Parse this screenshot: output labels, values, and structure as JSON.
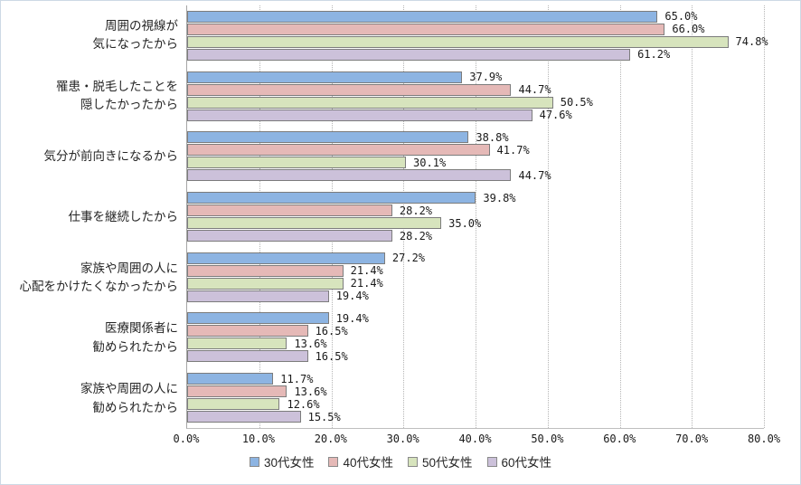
{
  "chart_data": {
    "type": "bar",
    "orientation": "horizontal",
    "title": "",
    "categories": [
      [
        "周囲の視線が",
        "気になったから"
      ],
      [
        "罹患・脱毛したことを",
        "隠したかったから"
      ],
      [
        "気分が前向きになるから"
      ],
      [
        "仕事を継続したから"
      ],
      [
        "家族や周囲の人に",
        "心配をかけたくなかったから"
      ],
      [
        "医療関係者に",
        "勧められたから"
      ],
      [
        "家族や周囲の人に",
        "勧められたから"
      ]
    ],
    "series": [
      {
        "name": "30代女性",
        "color": "#8db4e2",
        "values": [
          65.0,
          37.9,
          38.8,
          39.8,
          27.2,
          19.4,
          11.7
        ]
      },
      {
        "name": "40代女性",
        "color": "#e5b9b7",
        "values": [
          66.0,
          44.7,
          41.7,
          28.2,
          21.4,
          16.5,
          13.6
        ]
      },
      {
        "name": "50代女性",
        "color": "#d7e4bd",
        "values": [
          74.8,
          50.5,
          30.1,
          35.0,
          21.4,
          13.6,
          12.6
        ]
      },
      {
        "name": "60代女性",
        "color": "#ccc1da",
        "values": [
          61.2,
          47.6,
          44.7,
          28.2,
          19.4,
          16.5,
          15.5
        ]
      }
    ],
    "xlim": [
      0,
      80
    ],
    "x_ticks": [
      "0.0%",
      "10.0%",
      "20.0%",
      "30.0%",
      "40.0%",
      "50.0%",
      "60.0%",
      "70.0%",
      "80.0%"
    ],
    "value_suffix": "%",
    "value_decimals": 1,
    "grid": "vertical-dotted",
    "legend_position": "bottom",
    "bar_border_color": "#7c7c7c"
  }
}
